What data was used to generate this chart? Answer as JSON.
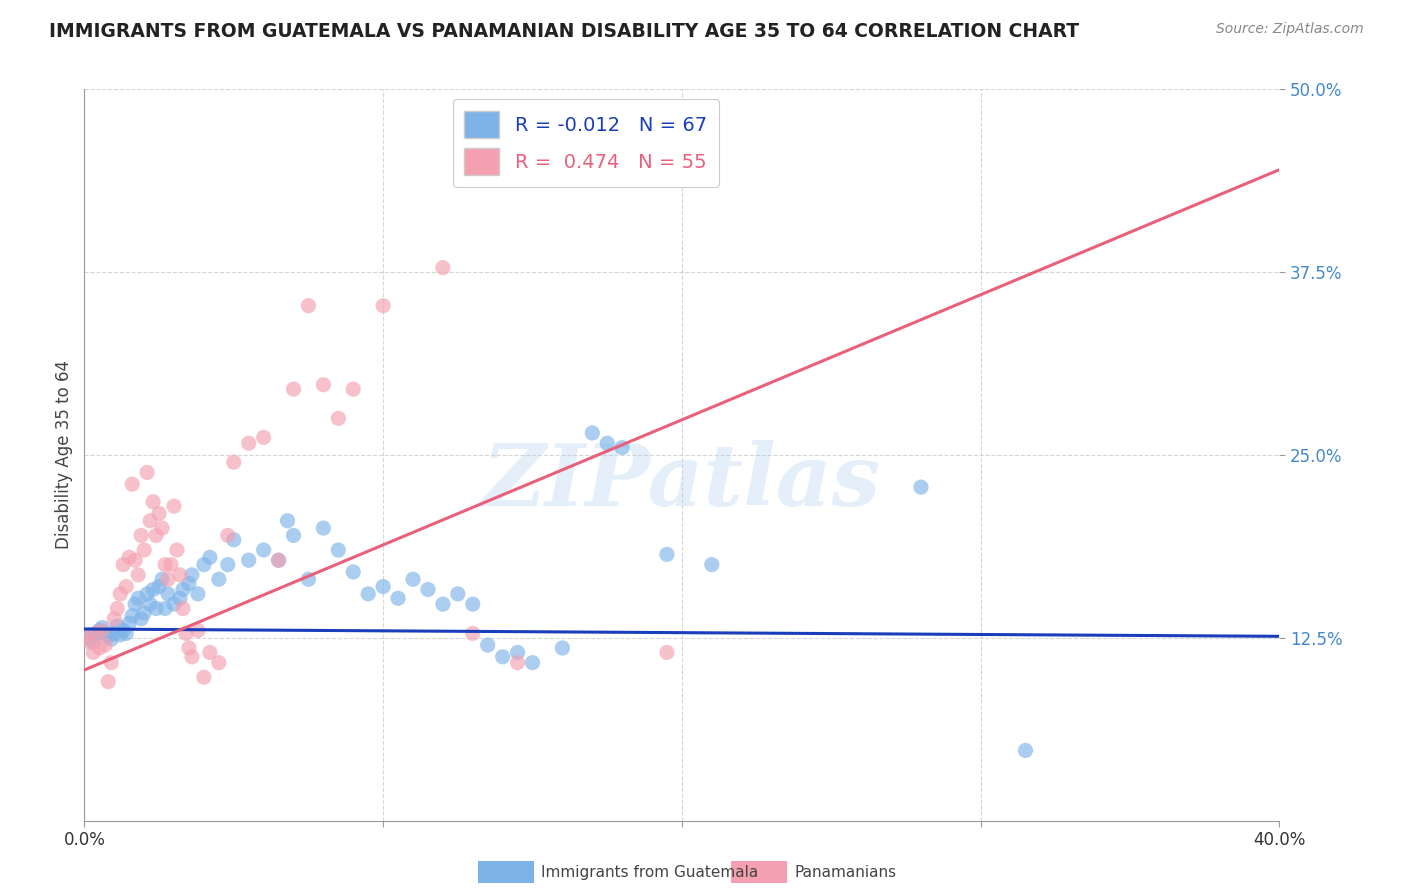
{
  "title": "IMMIGRANTS FROM GUATEMALA VS PANAMANIAN DISABILITY AGE 35 TO 64 CORRELATION CHART",
  "source": "Source: ZipAtlas.com",
  "ylabel": "Disability Age 35 to 64",
  "xlim": [
    0.0,
    0.42
  ],
  "ylim": [
    -0.02,
    0.52
  ],
  "plot_xlim": [
    0.0,
    0.4
  ],
  "plot_ylim": [
    0.0,
    0.5
  ],
  "xticks": [
    0.0,
    0.1,
    0.2,
    0.3,
    0.4
  ],
  "xtick_labels": [
    "0.0%",
    "",
    "",
    "",
    "40.0%"
  ],
  "yticks": [
    0.125,
    0.25,
    0.375,
    0.5
  ],
  "ytick_labels": [
    "12.5%",
    "25.0%",
    "37.5%",
    "50.0%"
  ],
  "legend_r_blue": "-0.012",
  "legend_n_blue": "67",
  "legend_r_pink": "0.474",
  "legend_n_pink": "55",
  "blue_color": "#7EB3E8",
  "pink_color": "#F4A0B0",
  "blue_line_color": "#1A3EBB",
  "pink_line_color": "#E8607A",
  "watermark": "ZIPatlas",
  "blue_line_x": [
    0.0,
    0.4
  ],
  "blue_line_y": [
    0.131,
    0.126
  ],
  "pink_line_x": [
    0.0,
    0.4
  ],
  "pink_line_y": [
    0.103,
    0.445
  ],
  "blue_scatter": [
    [
      0.001,
      0.125
    ],
    [
      0.002,
      0.127
    ],
    [
      0.003,
      0.122
    ],
    [
      0.004,
      0.128
    ],
    [
      0.005,
      0.13
    ],
    [
      0.006,
      0.132
    ],
    [
      0.007,
      0.128
    ],
    [
      0.008,
      0.126
    ],
    [
      0.009,
      0.124
    ],
    [
      0.01,
      0.128
    ],
    [
      0.011,
      0.133
    ],
    [
      0.012,
      0.127
    ],
    [
      0.013,
      0.13
    ],
    [
      0.014,
      0.128
    ],
    [
      0.015,
      0.135
    ],
    [
      0.016,
      0.14
    ],
    [
      0.017,
      0.148
    ],
    [
      0.018,
      0.152
    ],
    [
      0.019,
      0.138
    ],
    [
      0.02,
      0.142
    ],
    [
      0.021,
      0.155
    ],
    [
      0.022,
      0.148
    ],
    [
      0.023,
      0.158
    ],
    [
      0.024,
      0.145
    ],
    [
      0.025,
      0.16
    ],
    [
      0.026,
      0.165
    ],
    [
      0.027,
      0.145
    ],
    [
      0.028,
      0.155
    ],
    [
      0.03,
      0.148
    ],
    [
      0.032,
      0.152
    ],
    [
      0.033,
      0.158
    ],
    [
      0.035,
      0.162
    ],
    [
      0.036,
      0.168
    ],
    [
      0.038,
      0.155
    ],
    [
      0.04,
      0.175
    ],
    [
      0.042,
      0.18
    ],
    [
      0.045,
      0.165
    ],
    [
      0.048,
      0.175
    ],
    [
      0.05,
      0.192
    ],
    [
      0.055,
      0.178
    ],
    [
      0.06,
      0.185
    ],
    [
      0.065,
      0.178
    ],
    [
      0.068,
      0.205
    ],
    [
      0.07,
      0.195
    ],
    [
      0.075,
      0.165
    ],
    [
      0.08,
      0.2
    ],
    [
      0.085,
      0.185
    ],
    [
      0.09,
      0.17
    ],
    [
      0.095,
      0.155
    ],
    [
      0.1,
      0.16
    ],
    [
      0.105,
      0.152
    ],
    [
      0.11,
      0.165
    ],
    [
      0.115,
      0.158
    ],
    [
      0.12,
      0.148
    ],
    [
      0.125,
      0.155
    ],
    [
      0.13,
      0.148
    ],
    [
      0.135,
      0.12
    ],
    [
      0.14,
      0.112
    ],
    [
      0.145,
      0.115
    ],
    [
      0.15,
      0.108
    ],
    [
      0.16,
      0.118
    ],
    [
      0.17,
      0.265
    ],
    [
      0.175,
      0.258
    ],
    [
      0.18,
      0.255
    ],
    [
      0.195,
      0.182
    ],
    [
      0.21,
      0.175
    ],
    [
      0.28,
      0.228
    ],
    [
      0.315,
      0.048
    ]
  ],
  "pink_scatter": [
    [
      0.001,
      0.125
    ],
    [
      0.002,
      0.122
    ],
    [
      0.003,
      0.115
    ],
    [
      0.004,
      0.128
    ],
    [
      0.005,
      0.118
    ],
    [
      0.006,
      0.13
    ],
    [
      0.007,
      0.12
    ],
    [
      0.008,
      0.095
    ],
    [
      0.009,
      0.108
    ],
    [
      0.01,
      0.138
    ],
    [
      0.011,
      0.145
    ],
    [
      0.012,
      0.155
    ],
    [
      0.013,
      0.175
    ],
    [
      0.014,
      0.16
    ],
    [
      0.015,
      0.18
    ],
    [
      0.016,
      0.23
    ],
    [
      0.017,
      0.178
    ],
    [
      0.018,
      0.168
    ],
    [
      0.019,
      0.195
    ],
    [
      0.02,
      0.185
    ],
    [
      0.021,
      0.238
    ],
    [
      0.022,
      0.205
    ],
    [
      0.023,
      0.218
    ],
    [
      0.024,
      0.195
    ],
    [
      0.025,
      0.21
    ],
    [
      0.026,
      0.2
    ],
    [
      0.027,
      0.175
    ],
    [
      0.028,
      0.165
    ],
    [
      0.029,
      0.175
    ],
    [
      0.03,
      0.215
    ],
    [
      0.031,
      0.185
    ],
    [
      0.032,
      0.168
    ],
    [
      0.033,
      0.145
    ],
    [
      0.034,
      0.128
    ],
    [
      0.035,
      0.118
    ],
    [
      0.036,
      0.112
    ],
    [
      0.038,
      0.13
    ],
    [
      0.04,
      0.098
    ],
    [
      0.042,
      0.115
    ],
    [
      0.045,
      0.108
    ],
    [
      0.048,
      0.195
    ],
    [
      0.05,
      0.245
    ],
    [
      0.055,
      0.258
    ],
    [
      0.06,
      0.262
    ],
    [
      0.065,
      0.178
    ],
    [
      0.07,
      0.295
    ],
    [
      0.075,
      0.352
    ],
    [
      0.08,
      0.298
    ],
    [
      0.085,
      0.275
    ],
    [
      0.09,
      0.295
    ],
    [
      0.1,
      0.352
    ],
    [
      0.12,
      0.378
    ],
    [
      0.13,
      0.128
    ],
    [
      0.145,
      0.108
    ],
    [
      0.195,
      0.115
    ]
  ]
}
